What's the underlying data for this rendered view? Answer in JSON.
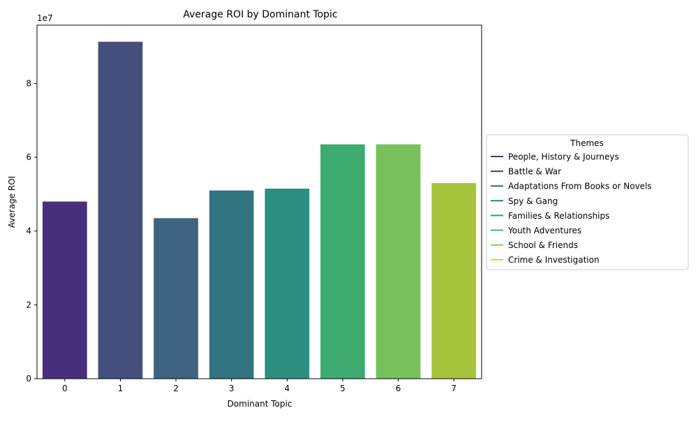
{
  "chart_data": {
    "type": "bar",
    "title": "Average ROI by Dominant Topic",
    "xlabel": "Dominant Topic",
    "ylabel": "Average ROI",
    "y_offset_label": "1e7",
    "categories": [
      "0",
      "1",
      "2",
      "3",
      "4",
      "5",
      "6",
      "7"
    ],
    "values": [
      48000000,
      91300000,
      43500000,
      51000000,
      51500000,
      63500000,
      63500000,
      53000000
    ],
    "ylim": [
      0,
      95800000
    ],
    "yticks": [
      0,
      20000000,
      40000000,
      60000000,
      80000000
    ],
    "ytick_labels": [
      "0",
      "2",
      "4",
      "6",
      "8"
    ],
    "colors": [
      "#472f7d",
      "#46507f",
      "#3e6480",
      "#32747f",
      "#2c8f7f",
      "#3dab70",
      "#78c05c",
      "#a8c43c"
    ],
    "legend": {
      "title": "Themes",
      "position": "right",
      "entries": [
        {
          "label": "People, History & Journeys",
          "color": "#472f7d"
        },
        {
          "label": "Battle & War",
          "color": "#3b3d7e"
        },
        {
          "label": "Adaptations From Books or Novels",
          "color": "#3e6480"
        },
        {
          "label": "Spy & Gang",
          "color": "#287d7c"
        },
        {
          "label": "Families & Relationships",
          "color": "#23a08a"
        },
        {
          "label": "Youth Adventures",
          "color": "#3dbb78"
        },
        {
          "label": "School & Friends",
          "color": "#78d04c"
        },
        {
          "label": "Crime & Investigation",
          "color": "#bddf2c"
        }
      ]
    },
    "grid": false
  }
}
